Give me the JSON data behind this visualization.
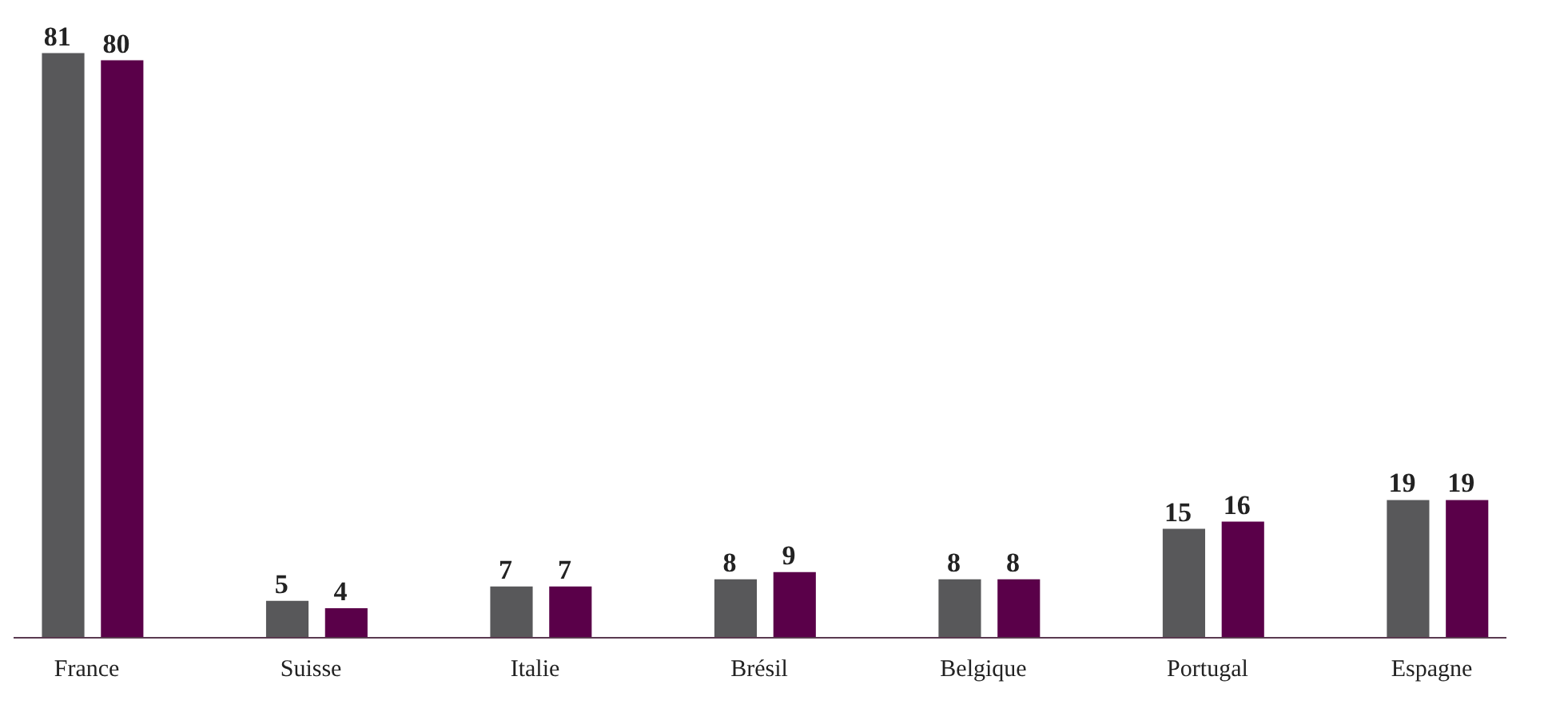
{
  "chart_data": {
    "type": "bar",
    "categories": [
      "France",
      "Suisse",
      "Italie",
      "Brésil",
      "Belgique",
      "Portugal",
      "Espagne"
    ],
    "series": [
      {
        "color": "#58585a",
        "values": [
          81,
          5,
          7,
          8,
          8,
          15,
          19
        ]
      },
      {
        "color": "#5a0049",
        "values": [
          80,
          4,
          7,
          9,
          8,
          16,
          19
        ]
      }
    ],
    "data_labels": true,
    "legend": false,
    "grid": false
  }
}
